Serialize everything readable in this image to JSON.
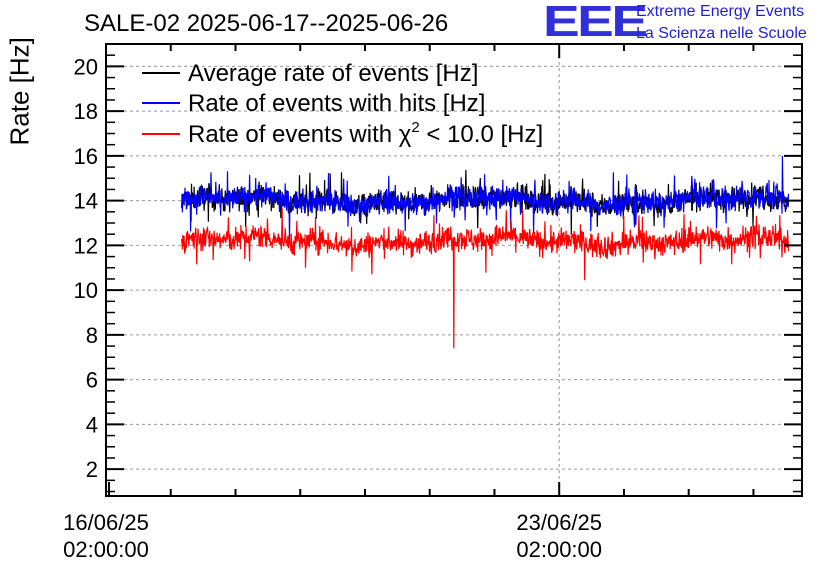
{
  "header": {
    "title": "SALE-02 2025-06-17--2025-06-26",
    "logo_text": "EEE",
    "brand_line1": "Extreme Energy Events",
    "brand_line2": "La Scienza nelle Scuole"
  },
  "colors": {
    "average": "#000000",
    "hits": "#0000ff",
    "chi2": "#ff0000",
    "grid": "#999999",
    "brand": "#1f1fd8"
  },
  "chart_data": {
    "type": "line",
    "title": "SALE-02 2025-06-17--2025-06-26",
    "xlabel": "",
    "ylabel": "Rate [Hz]",
    "ylim": [
      0.8,
      21
    ],
    "xlim": [
      "2025-06-16 02:00:00",
      "2025-06-26 20:00:00"
    ],
    "y_ticks": [
      "2",
      "4",
      "6",
      "8",
      "10",
      "12",
      "14",
      "16",
      "18",
      "20"
    ],
    "x_ticks": [
      {
        "line1": "16/06/25",
        "line2": "02:00:00"
      },
      {
        "line1": "23/06/25",
        "line2": "02:00:00"
      }
    ],
    "grid": true,
    "legend_position": "top-left",
    "series": [
      {
        "name": "Average rate of events [Hz]",
        "color": "#000000",
        "x_start": "2025-06-17 06:00:00",
        "x_end": "2025-06-26 15:00:00",
        "mean": 14.0,
        "spread": 0.5
      },
      {
        "name": "Rate of events with hits [Hz]",
        "color": "#0000ff",
        "x_start": "2025-06-17 06:00:00",
        "x_end": "2025-06-26 15:00:00",
        "mean": 14.0,
        "spread": 0.5,
        "max": 16.0
      },
      {
        "name": "Rate of events with χ² < 10.0 [Hz]",
        "color": "#ff0000",
        "x_start": "2025-06-17 06:00:00",
        "x_end": "2025-06-26 15:00:00",
        "mean": 12.2,
        "spread": 0.5,
        "min": 7.4,
        "min_at": "2025-06-21 11:00:00"
      }
    ],
    "legend": [
      {
        "label_main": "Rate of events with ",
        "chi_symbol": "χ",
        "chi_sup": "2",
        "label_rest": " < 10.0 [Hz]"
      }
    ]
  }
}
